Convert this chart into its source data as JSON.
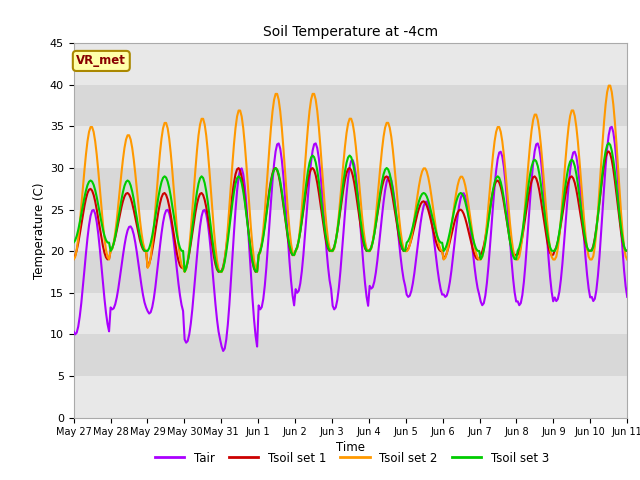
{
  "title": "Soil Temperature at -4cm",
  "xlabel": "Time",
  "ylabel": "Temperature (C)",
  "ylim": [
    0,
    45
  ],
  "yticks": [
    0,
    5,
    10,
    15,
    20,
    25,
    30,
    35,
    40,
    45
  ],
  "x_labels": [
    "May 27",
    "May 28",
    "May 29",
    "May 30",
    "May 31",
    "Jun 1",
    "Jun 2",
    "Jun 3",
    "Jun 4",
    "Jun 5",
    "Jun 6",
    "Jun 7",
    "Jun 8",
    "Jun 9",
    "Jun 10",
    "Jun 11"
  ],
  "colors": {
    "Tair": "#aa00ff",
    "Tsoil1": "#cc0000",
    "Tsoil2": "#ff9900",
    "Tsoil3": "#00cc00"
  },
  "bg_color": "#e8e8e8",
  "band_color": "#d0d0d0",
  "annotation_text": "VR_met",
  "annotation_bg": "#ffffaa",
  "annotation_border": "#aa8800",
  "annotation_text_color": "#880000",
  "linewidth": 1.5,
  "legend_labels": [
    "Tair",
    "Tsoil set 1",
    "Tsoil set 2",
    "Tsoil set 3"
  ],
  "n_days": 15,
  "tair_daily_min": [
    10,
    13,
    12.5,
    9,
    8,
    13,
    15,
    13,
    15.5,
    14.5,
    14.5,
    13.5,
    13.5,
    14,
    14
  ],
  "tair_daily_max": [
    25,
    23,
    25,
    25,
    30,
    33,
    33,
    31,
    29,
    26,
    27,
    32,
    33,
    32,
    35
  ],
  "tsoil1_daily_min": [
    19,
    20,
    18,
    17.5,
    17.5,
    19.5,
    20,
    20,
    20,
    20,
    19,
    19.5,
    19.5,
    20,
    20
  ],
  "tsoil1_daily_max": [
    27.5,
    27,
    27,
    27,
    30,
    30,
    30,
    30,
    29,
    26,
    25,
    28.5,
    29,
    29,
    32
  ],
  "tsoil2_daily_min": [
    19,
    20,
    18,
    17.5,
    17.5,
    19.5,
    20,
    20,
    20,
    20,
    19,
    19,
    19,
    19,
    19
  ],
  "tsoil2_daily_max": [
    35,
    34,
    35.5,
    36,
    37,
    39,
    39,
    36,
    35.5,
    30,
    29,
    35,
    36.5,
    37,
    40
  ],
  "tsoil3_daily_min": [
    21,
    20,
    20,
    17.5,
    17.5,
    19.5,
    20,
    20,
    20,
    21,
    20,
    19,
    20,
    20,
    20
  ],
  "tsoil3_daily_max": [
    28.5,
    28.5,
    29,
    29,
    29,
    30,
    31.5,
    31.5,
    30,
    27,
    27,
    29,
    31,
    31,
    33
  ]
}
